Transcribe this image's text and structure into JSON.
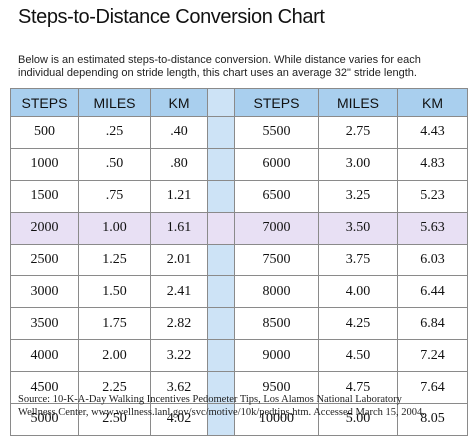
{
  "title": "Steps-to-Distance Conversion Chart",
  "intro_lines": [
    "Below is an estimated steps-to-distance conversion. While distance varies for each",
    "individual depending on stride length, this chart uses an average 32\" stride length."
  ],
  "table": {
    "headers": [
      "STEPS",
      "MILES",
      "KM",
      "STEPS",
      "MILES",
      "KM"
    ],
    "rows": [
      [
        "500",
        ".25",
        ".40",
        "5500",
        "2.75",
        "4.43"
      ],
      [
        "1000",
        ".50",
        ".80",
        "6000",
        "3.00",
        "4.83"
      ],
      [
        "1500",
        ".75",
        "1.21",
        "6500",
        "3.25",
        "5.23"
      ],
      [
        "2000",
        "1.00",
        "1.61",
        "7000",
        "3.50",
        "5.63"
      ],
      [
        "2500",
        "1.25",
        "2.01",
        "7500",
        "3.75",
        "6.03"
      ],
      [
        "3000",
        "1.50",
        "2.41",
        "8000",
        "4.00",
        "6.44"
      ],
      [
        "3500",
        "1.75",
        "2.82",
        "8500",
        "4.25",
        "6.84"
      ],
      [
        "4000",
        "2.00",
        "3.22",
        "9000",
        "4.50",
        "7.24"
      ],
      [
        "4500",
        "2.25",
        "3.62",
        "9500",
        "4.75",
        "7.64"
      ],
      [
        "5000",
        "2.50",
        "4.02",
        "10000",
        "5.00",
        "8.05"
      ]
    ],
    "highlighted_row": 3,
    "header_color": "#a9cfee",
    "gap_color": "#cde3f6",
    "highlight_color": "#e8e0f4"
  },
  "source_lines": [
    "Source: 10-K-A-Day Walking Incentives Pedometer Tips, Los Alamos National Laboratory",
    "Wellness Center, www.wellness.lanl.gov/svc/motive/10k/pedtips.htm.  Accessed March 15, 2004."
  ]
}
